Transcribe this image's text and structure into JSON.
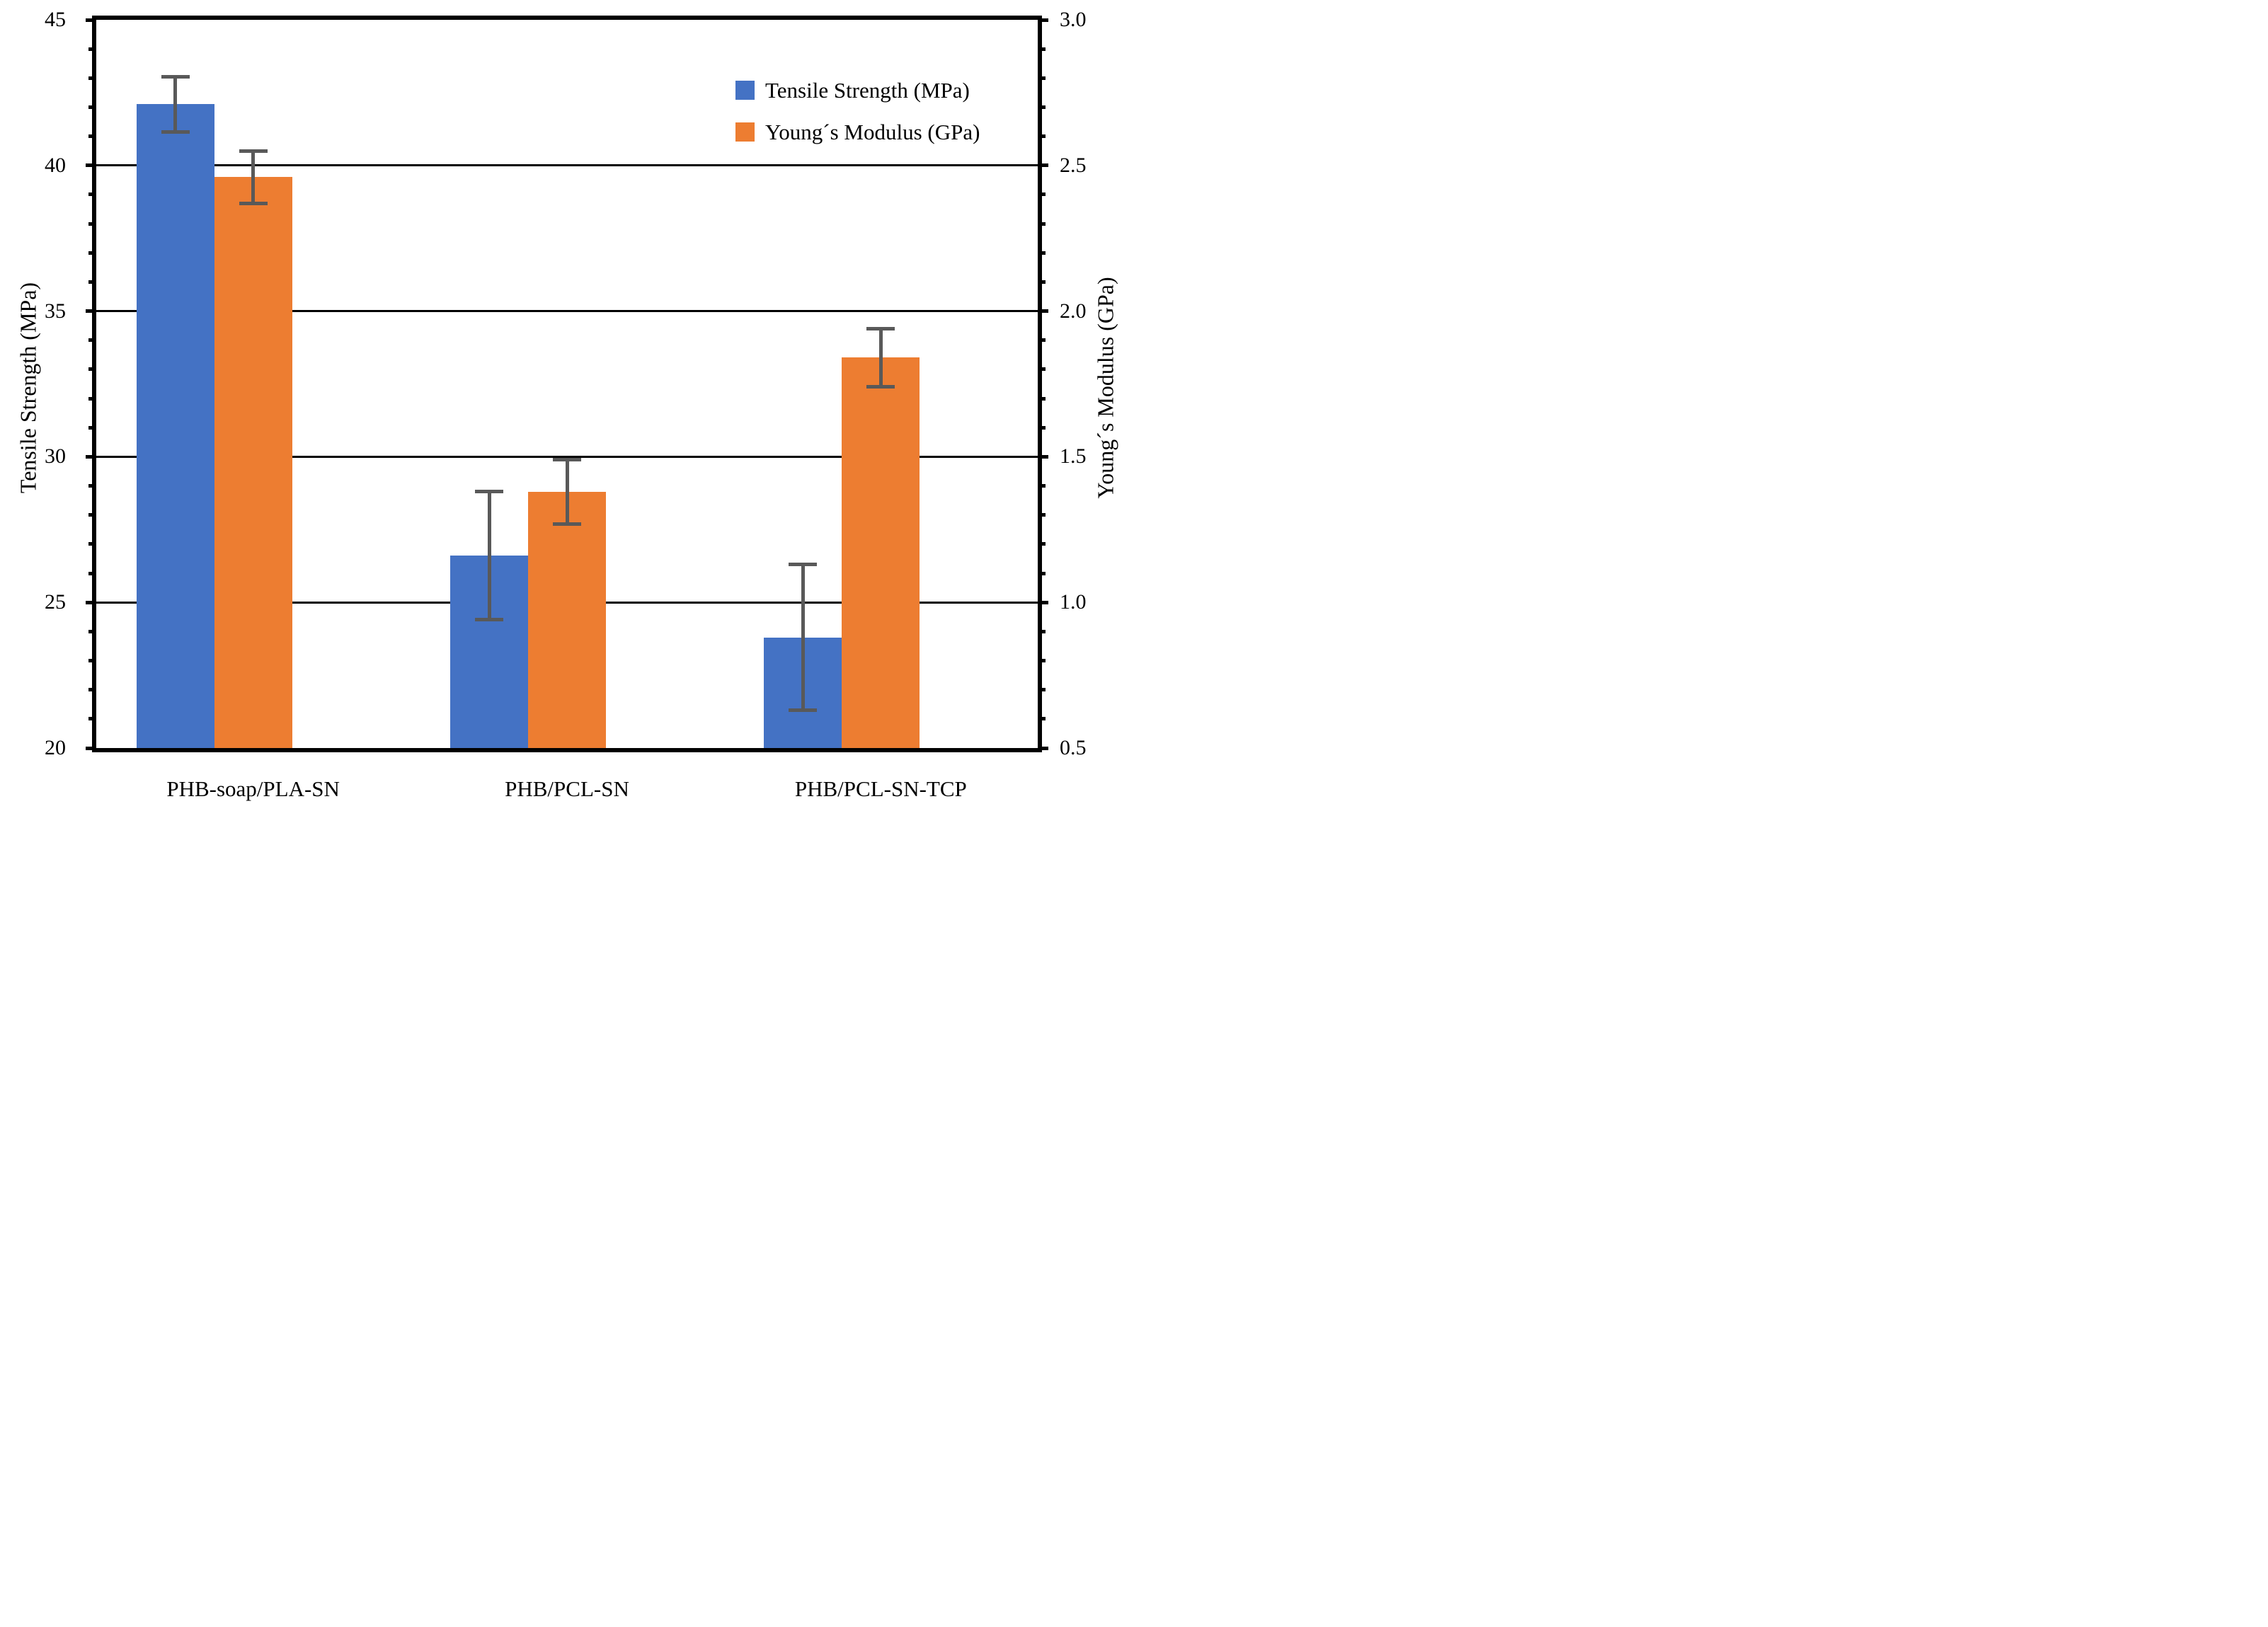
{
  "chart_data": {
    "type": "bar",
    "title": "",
    "categories": [
      "PHB-soap/PLA-SN",
      "PHB/PCL-SN",
      "PHB/PCL-SN-TCP"
    ],
    "series": [
      {
        "name": "Tensile Strength (MPa)",
        "axis": "left",
        "color": "#4472C4",
        "values": [
          42.1,
          26.6,
          23.8
        ],
        "errors": [
          0.95,
          2.2,
          2.5
        ]
      },
      {
        "name": "Young´s Modulus (GPa)",
        "axis": "right",
        "color": "#ED7D31",
        "values": [
          2.46,
          1.38,
          1.84
        ],
        "errors": [
          0.09,
          0.11,
          0.1
        ]
      }
    ],
    "left_axis": {
      "label": "Tensile Strength (MPa)",
      "min": 20,
      "max": 45,
      "major_tick_labels": [
        "45",
        "40",
        "35",
        "30",
        "25",
        "20"
      ],
      "minor_step": 1
    },
    "right_axis": {
      "label": "Young´s Modulus (GPa)",
      "min": 0.5,
      "max": 3.0,
      "major_tick_labels": [
        "3.0",
        "2.5",
        "2.0",
        "1.5",
        "1.0",
        "0.5"
      ],
      "minor_step": 0.1
    },
    "gridlines_at_left_values": [
      40,
      35,
      30,
      25
    ],
    "grid_on": true,
    "legend": {
      "position": "top-right",
      "entries": [
        {
          "label": "Tensile Strength (MPa)",
          "color": "#4472C4"
        },
        {
          "label": "Young´s Modulus (GPa)",
          "color": "#ED7D31"
        }
      ]
    },
    "error_bar_color": "#595959",
    "frame_color": "#000000"
  }
}
